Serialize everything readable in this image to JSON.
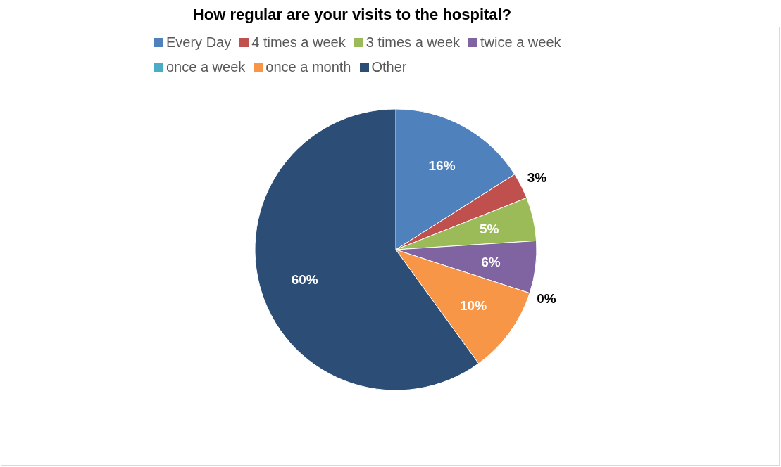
{
  "chart_data": {
    "type": "pie",
    "title": "How regular are your visits to the hospital?",
    "categories": [
      "Every Day",
      "4 times a week",
      "3 times a week",
      "twice a week",
      "once a week",
      "once a month",
      "Other"
    ],
    "values": [
      16,
      3,
      5,
      6,
      0,
      10,
      60
    ],
    "colors": [
      "#4f81bd",
      "#c0504d",
      "#9bbb59",
      "#8064a2",
      "#4bacc6",
      "#f79646",
      "#2c4d75"
    ],
    "value_labels": [
      "16%",
      "3%",
      "5%",
      "6%",
      "0%",
      "10%",
      "60%"
    ],
    "legend": "top"
  }
}
